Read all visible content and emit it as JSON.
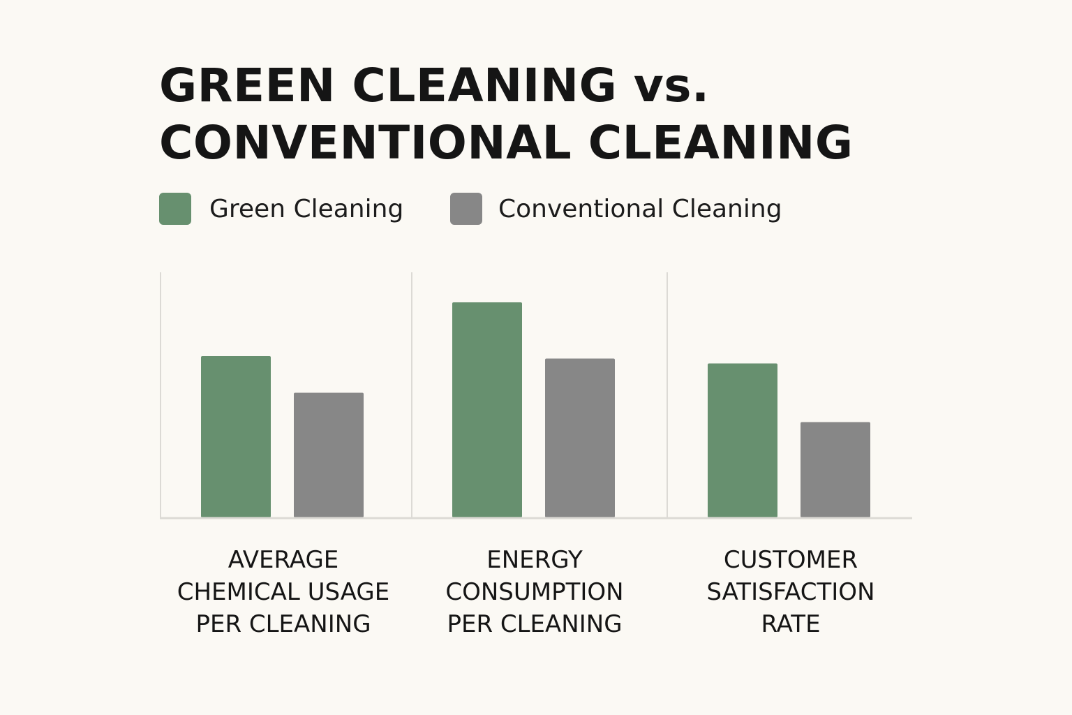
{
  "title_lines": [
    "GREEN CLEANING vs.",
    "CONVENTIONAL CLEANING"
  ],
  "colors": {
    "green": "#67906f",
    "gray": "#878787",
    "gridline": "#dcdad5",
    "baseline": "#dcdad5"
  },
  "chart_data": {
    "type": "bar",
    "title": "GREEN CLEANING vs. CONVENTIONAL CLEANING",
    "categories": [
      "AVERAGE CHEMICAL USAGE PER CLEANING",
      "ENERGY CONSUMPTION PER CLEANING",
      "CUSTOMER SATISFACTION RATE"
    ],
    "category_label_lines": [
      [
        "AVERAGE",
        "CHEMICAL USAGE",
        "PER CLEANING"
      ],
      [
        "ENERGY",
        "CONSUMPTION",
        "PER CLEANING"
      ],
      [
        "CUSTOMER",
        "SATISFACTION",
        "RATE"
      ]
    ],
    "series": [
      {
        "name": "Green Cleaning",
        "color": "#67906f",
        "values": [
          66,
          88,
          63
        ]
      },
      {
        "name": "Conventional Cleaning",
        "color": "#878787",
        "values": [
          51,
          65,
          39
        ]
      }
    ],
    "ylim": [
      0,
      100
    ],
    "xlabel": "",
    "ylabel": "",
    "grid": false,
    "legend_position": "top-left",
    "y_axis_ticks": "none"
  }
}
